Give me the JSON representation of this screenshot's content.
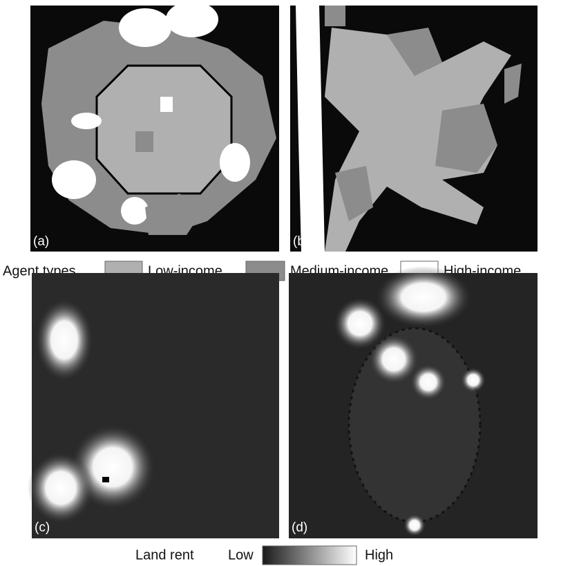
{
  "panels": [
    {
      "label": "(a)"
    },
    {
      "label": "(b)"
    },
    {
      "label": "(c)"
    },
    {
      "label": "(d)"
    }
  ],
  "legend_agents": {
    "title": "Agent types",
    "items": [
      "Low-income",
      "Medium-income",
      "High-income"
    ]
  },
  "legend_rent": {
    "title": "Land rent",
    "low": "Low",
    "high": "High"
  }
}
